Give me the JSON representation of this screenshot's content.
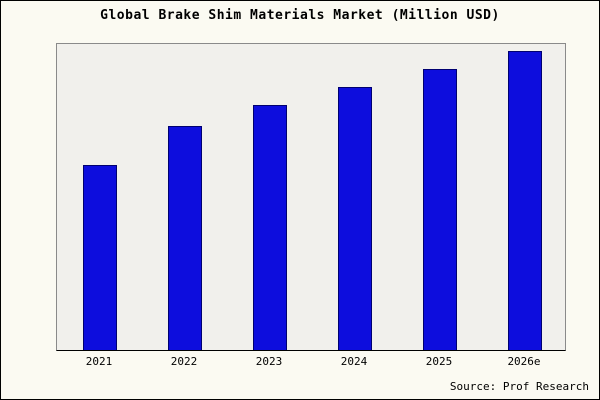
{
  "title": "Global Brake Shim Materials Market (Million USD)",
  "source": "Source: Prof Research",
  "colors": {
    "bar_fill": "#0d0ddd",
    "bar_border": "#000070",
    "plot_background": "#f1f0ec",
    "page_background": "#fbfaf2"
  },
  "chart_data": {
    "type": "bar",
    "title": "Global Brake Shim Materials Market (Million USD)",
    "categories": [
      "2021",
      "2022",
      "2023",
      "2024",
      "2025",
      "2026e"
    ],
    "values": [
      62,
      75,
      82,
      88,
      94,
      100
    ],
    "xlabel": "",
    "ylabel": "",
    "ylim": [
      0,
      103
    ],
    "grid": false,
    "legend": false,
    "annotations": [
      "Source: Prof Research"
    ]
  }
}
